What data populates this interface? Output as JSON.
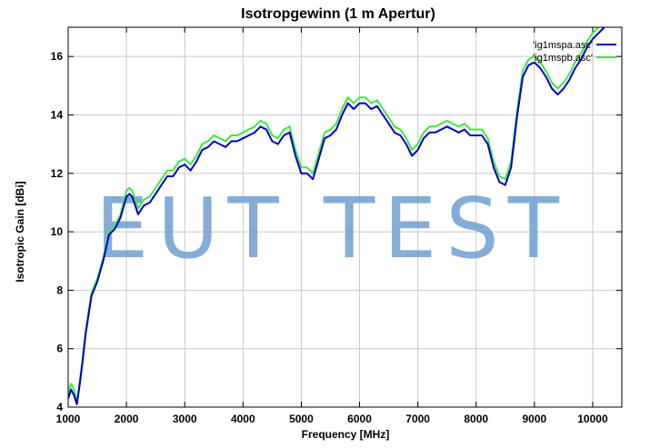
{
  "chart_data": {
    "type": "line",
    "title": "Isotropgewinn (1 m Apertur)",
    "xlabel": "Frequency [MHz]",
    "ylabel": "Isotropic Gain [dBi]",
    "xlim": [
      1000,
      10500
    ],
    "ylim": [
      4,
      17
    ],
    "xticks": [
      1000,
      2000,
      3000,
      4000,
      5000,
      6000,
      7000,
      8000,
      9000,
      10000
    ],
    "yticks": [
      4,
      6,
      8,
      10,
      12,
      14,
      16
    ],
    "grid": true,
    "legend": "top-right",
    "watermark": "EUT TEST",
    "series": [
      {
        "name": "'ig1mspa.asc'",
        "color": "#0000c8",
        "x": [
          1000,
          1050,
          1100,
          1150,
          1200,
          1250,
          1300,
          1400,
          1500,
          1600,
          1700,
          1800,
          1900,
          2000,
          2050,
          2100,
          2150,
          2200,
          2300,
          2400,
          2500,
          2600,
          2700,
          2800,
          2900,
          3000,
          3100,
          3200,
          3300,
          3400,
          3500,
          3600,
          3700,
          3800,
          3900,
          4000,
          4100,
          4200,
          4300,
          4400,
          4500,
          4600,
          4700,
          4800,
          4900,
          5000,
          5100,
          5200,
          5300,
          5400,
          5500,
          5600,
          5700,
          5800,
          5900,
          6000,
          6100,
          6200,
          6300,
          6400,
          6500,
          6600,
          6700,
          6800,
          6900,
          7000,
          7100,
          7200,
          7300,
          7400,
          7500,
          7600,
          7700,
          7800,
          7900,
          8000,
          8100,
          8200,
          8300,
          8400,
          8500,
          8600,
          8700,
          8800,
          8900,
          9000,
          9100,
          9200,
          9300,
          9400,
          9500,
          9600,
          9700,
          9800,
          9900,
          10000,
          10100,
          10200
        ],
        "values": [
          4.3,
          4.6,
          4.4,
          4.1,
          4.8,
          5.6,
          6.5,
          7.8,
          8.3,
          9.0,
          9.9,
          10.1,
          10.5,
          11.2,
          11.3,
          11.2,
          10.9,
          10.6,
          10.9,
          11.0,
          11.3,
          11.6,
          11.9,
          11.9,
          12.2,
          12.3,
          12.1,
          12.4,
          12.8,
          12.9,
          13.1,
          13.0,
          12.9,
          13.1,
          13.1,
          13.2,
          13.3,
          13.4,
          13.6,
          13.5,
          13.1,
          13.0,
          13.3,
          13.4,
          12.6,
          12.0,
          12.0,
          11.8,
          12.5,
          13.2,
          13.3,
          13.5,
          14.0,
          14.4,
          14.2,
          14.4,
          14.4,
          14.2,
          14.3,
          14.0,
          13.7,
          13.4,
          13.3,
          13.0,
          12.6,
          12.8,
          13.2,
          13.4,
          13.4,
          13.5,
          13.6,
          13.5,
          13.4,
          13.5,
          13.3,
          13.3,
          13.3,
          13.0,
          12.2,
          11.7,
          11.6,
          12.2,
          13.9,
          15.3,
          15.7,
          15.8,
          15.6,
          15.3,
          14.9,
          14.7,
          14.9,
          15.2,
          15.6,
          15.9,
          16.3,
          16.6,
          16.8,
          17.0
        ]
      },
      {
        "name": "'ig1mspb.asc'",
        "color": "#3ee83e",
        "x": [
          1000,
          1050,
          1100,
          1150,
          1200,
          1250,
          1300,
          1400,
          1500,
          1600,
          1700,
          1800,
          1900,
          2000,
          2050,
          2100,
          2150,
          2200,
          2300,
          2400,
          2500,
          2600,
          2700,
          2800,
          2900,
          3000,
          3100,
          3200,
          3300,
          3400,
          3500,
          3600,
          3700,
          3800,
          3900,
          4000,
          4100,
          4200,
          4300,
          4400,
          4500,
          4600,
          4700,
          4800,
          4900,
          5000,
          5100,
          5200,
          5300,
          5400,
          5500,
          5600,
          5700,
          5800,
          5900,
          6000,
          6100,
          6200,
          6300,
          6400,
          6500,
          6600,
          6700,
          6800,
          6900,
          7000,
          7100,
          7200,
          7300,
          7400,
          7500,
          7600,
          7700,
          7800,
          7900,
          8000,
          8100,
          8200,
          8300,
          8400,
          8500,
          8600,
          8700,
          8800,
          8900,
          9000,
          9100,
          9200,
          9300,
          9400,
          9500,
          9600,
          9700,
          9800,
          9900,
          10000,
          10100,
          10200
        ],
        "values": [
          4.5,
          4.8,
          4.6,
          4.2,
          4.9,
          5.7,
          6.6,
          7.9,
          8.4,
          9.1,
          10.0,
          10.2,
          10.6,
          11.4,
          11.5,
          11.4,
          11.1,
          10.8,
          11.1,
          11.2,
          11.5,
          11.8,
          12.1,
          12.1,
          12.4,
          12.5,
          12.3,
          12.6,
          13.0,
          13.1,
          13.3,
          13.2,
          13.1,
          13.3,
          13.3,
          13.4,
          13.5,
          13.6,
          13.8,
          13.7,
          13.3,
          13.2,
          13.5,
          13.6,
          12.8,
          12.2,
          12.2,
          12.0,
          12.7,
          13.4,
          13.5,
          13.7,
          14.2,
          14.6,
          14.4,
          14.6,
          14.6,
          14.4,
          14.5,
          14.2,
          13.9,
          13.6,
          13.5,
          13.2,
          12.8,
          13.0,
          13.4,
          13.6,
          13.6,
          13.7,
          13.8,
          13.7,
          13.6,
          13.7,
          13.5,
          13.5,
          13.5,
          13.2,
          12.4,
          11.9,
          11.8,
          12.4,
          14.1,
          15.5,
          15.9,
          16.0,
          15.8,
          15.5,
          15.1,
          14.9,
          15.1,
          15.4,
          15.8,
          16.1,
          16.5,
          16.8,
          17.0,
          17.2
        ]
      }
    ]
  }
}
